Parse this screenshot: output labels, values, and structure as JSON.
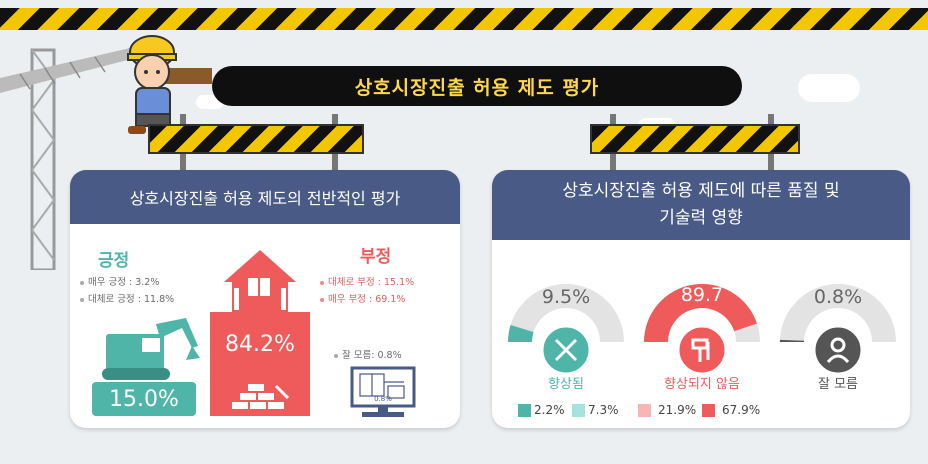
{
  "title": "상호시장진출 허용 제도 평가",
  "left_panel": {
    "heading": "상호시장진출 허용 제도의 전반적인 평가",
    "positive": {
      "label": "긍정",
      "items": [
        "매우 긍정 : 3.2%",
        "대체로 긍정 : 11.8%"
      ],
      "total": "15.0%"
    },
    "negative": {
      "label": "부정",
      "items": [
        "대체로 부정 : 15.1%",
        "매우 부정 : 69.1%"
      ],
      "total": "84.2%"
    },
    "unknown": {
      "label": "잘 모름: 0.8%",
      "monitor_value": "0.8%"
    }
  },
  "right_panel": {
    "heading_line1": "상호시장진출 허용 제도에 따른 품질 및",
    "heading_line2": "기술력 영향",
    "gauges": [
      {
        "value": "9.5%",
        "fraction": 0.095,
        "label": "향상됨",
        "color": "#4fb5a8",
        "icon": "tools-icon"
      },
      {
        "value": "89.7",
        "fraction": 0.897,
        "label": "향상되지 않음",
        "color": "#ef5a5a",
        "icon": "roller-icon"
      },
      {
        "value": "0.8%",
        "fraction": 0.008,
        "label": "잘 모름",
        "color": "#555555",
        "icon": "worker-icon"
      }
    ],
    "legend": [
      {
        "text": "2.2%",
        "color": "#4fb5a8"
      },
      {
        "text": "7.3%",
        "color": "#a6e3de"
      },
      {
        "text": "21.9%",
        "color": "#f6b6b6"
      },
      {
        "text": "67.9%",
        "color": "#ef5a5a"
      }
    ]
  },
  "colors": {
    "teal": "#4fb5a8",
    "red": "#ef5a5a",
    "navy": "#4a5a86",
    "yellow": "#f2c700"
  }
}
